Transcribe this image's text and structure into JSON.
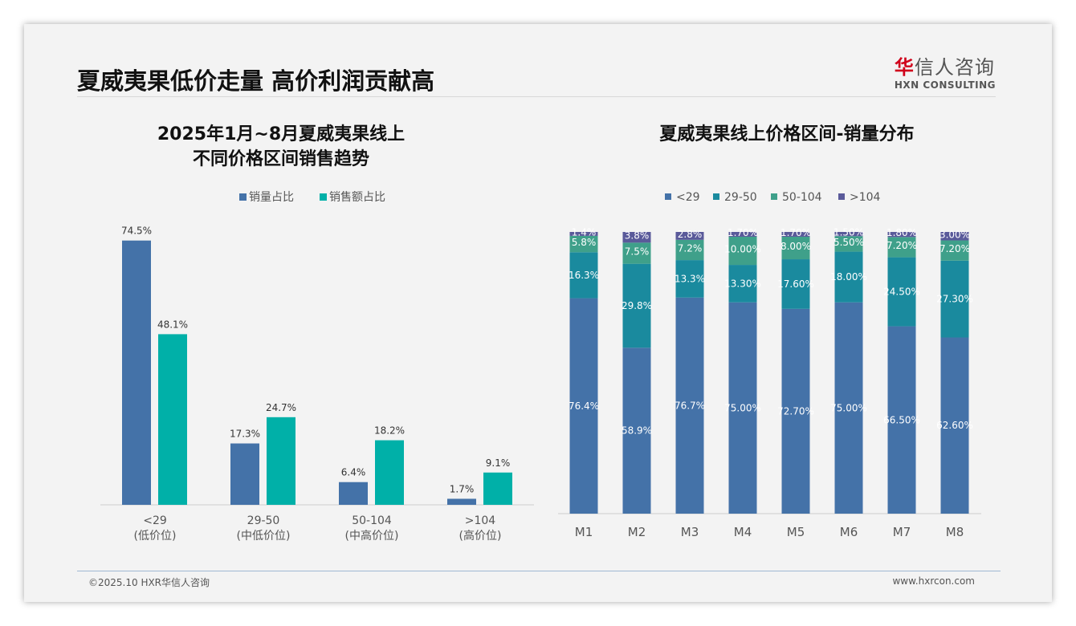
{
  "header": {
    "title": "夏威夷果低价走量 高价利润贡献高",
    "logo_cn_red": "华",
    "logo_cn": "信人咨询",
    "logo_en": "HXN CONSULTING"
  },
  "footer": {
    "copyright": "©2025.10 HXR华信人咨询",
    "url": "www.hxrcon.com"
  },
  "colors": {
    "blue": "#4472a8",
    "teal": "#00b0a8",
    "c1": "#4472a8",
    "c2": "#1a8a9e",
    "c3": "#3fa08a",
    "c4": "#5a5a9a"
  },
  "chart_data": [
    {
      "type": "bar",
      "title": "2025年1月~8月夏威夷果线上\n不同价格区间销售趋势",
      "title_line1": "2025年1月~8月夏威夷果线上",
      "title_line2": "不同价格区间销售趋势",
      "categories": [
        "<29",
        "29-50",
        "50-104",
        ">104"
      ],
      "category_sub": [
        "(低价位)",
        "(中低价位)",
        "(中高价位)",
        "(高价位)"
      ],
      "series": [
        {
          "name": "销量占比",
          "values": [
            74.5,
            17.3,
            6.4,
            1.7
          ]
        },
        {
          "name": "销售额占比",
          "values": [
            48.1,
            24.7,
            18.2,
            9.1
          ]
        }
      ],
      "unit": "%",
      "legend": "top"
    },
    {
      "type": "bar",
      "stacked": true,
      "title": "夏威夷果线上价格区间-销量分布",
      "categories": [
        "M1",
        "M2",
        "M3",
        "M4",
        "M5",
        "M6",
        "M7",
        "M8"
      ],
      "series": [
        {
          "name": "<29",
          "values": [
            76.4,
            58.9,
            76.7,
            75.0,
            72.7,
            75.0,
            66.5,
            62.6
          ],
          "labels": [
            "76.4%",
            "58.9%",
            "76.7%",
            "75.00%",
            "72.70%",
            "75.00%",
            "66.50%",
            "62.60%"
          ]
        },
        {
          "name": "29-50",
          "values": [
            16.3,
            29.8,
            13.3,
            13.3,
            17.6,
            18.0,
            24.5,
            27.3
          ],
          "labels": [
            "16.3%",
            "29.8%",
            "13.3%",
            "13.30%",
            "17.60%",
            "18.00%",
            "24.50%",
            "27.30%"
          ]
        },
        {
          "name": "50-104",
          "values": [
            5.8,
            7.5,
            7.2,
            10.0,
            8.0,
            5.5,
            7.2,
            7.2
          ],
          "labels": [
            "5.8%",
            "7.5%",
            "7.2%",
            "10.00%",
            "8.00%",
            "5.50%",
            "7.20%",
            "7.20%"
          ]
        },
        {
          "name": ">104",
          "values": [
            1.4,
            3.8,
            2.8,
            1.7,
            1.7,
            1.5,
            1.8,
            3.0
          ],
          "labels": [
            "1.4%",
            "3.8%",
            "2.8%",
            "1.70%",
            "1.70%",
            "1.50%",
            "1.80%",
            "3.00%"
          ]
        }
      ],
      "legend": "top"
    }
  ]
}
